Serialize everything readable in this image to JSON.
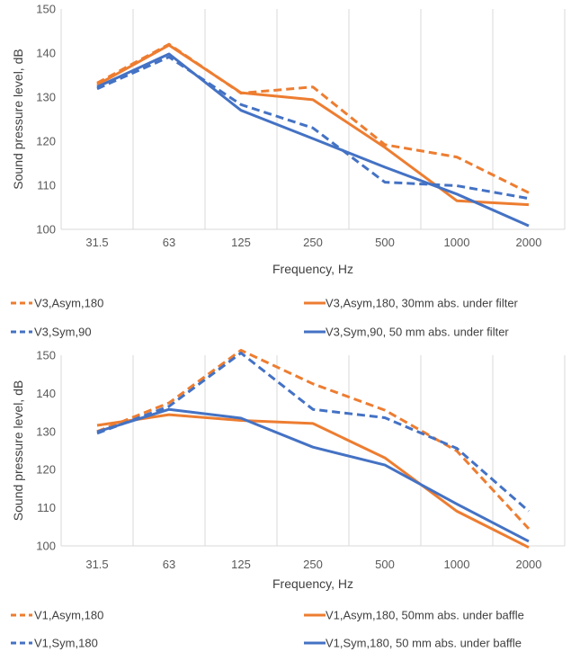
{
  "colors": {
    "orange": "#ED7D31",
    "blue": "#4472C4",
    "grid": "#D9D9D9",
    "text": "#595959"
  },
  "chart_data": [
    {
      "type": "line",
      "categories": [
        "31.5",
        "63",
        "125",
        "250",
        "500",
        "1000",
        "2000"
      ],
      "xlabel": "Frequency, Hz",
      "ylabel": "Sound pressure level, dB",
      "ylim": [
        100,
        150
      ],
      "yticks": [
        100,
        110,
        120,
        130,
        140,
        150
      ],
      "grid": "vertical",
      "legend_position": "bottom",
      "series": [
        {
          "name": "V3,Asym,180",
          "color": "#ED7D31",
          "dash": "dashed",
          "values": [
            133.2,
            142.0,
            130.9,
            132.3,
            119.2,
            116.4,
            108.3
          ]
        },
        {
          "name": "V3,Asym,180, 30mm abs. under filter",
          "color": "#ED7D31",
          "dash": "solid",
          "values": [
            132.8,
            141.8,
            131.0,
            129.4,
            118.6,
            106.5,
            105.6
          ]
        },
        {
          "name": "V3,Sym,90",
          "color": "#4472C4",
          "dash": "dashed",
          "values": [
            131.9,
            139.1,
            128.3,
            123.0,
            110.7,
            109.9,
            107.0
          ]
        },
        {
          "name": "V3,Sym,90, 50 mm abs. under filter",
          "color": "#4472C4",
          "dash": "solid",
          "values": [
            132.3,
            139.8,
            127.0,
            120.6,
            114.1,
            108.0,
            100.8
          ]
        }
      ]
    },
    {
      "type": "line",
      "categories": [
        "31.5",
        "63",
        "125",
        "250",
        "500",
        "1000",
        "2000"
      ],
      "xlabel": "Frequency, Hz",
      "ylabel": "Sound pressure level, dB",
      "ylim": [
        100,
        150
      ],
      "yticks": [
        100,
        110,
        120,
        130,
        140,
        150
      ],
      "grid": "vertical",
      "legend_position": "bottom",
      "series": [
        {
          "name": "V1,Asym,180",
          "color": "#ED7D31",
          "dash": "dashed",
          "values": [
            130.0,
            137.5,
            151.3,
            142.5,
            135.6,
            124.9,
            104.5
          ]
        },
        {
          "name": "V1,Asym,180, 50mm abs. under baffle",
          "color": "#ED7D31",
          "dash": "solid",
          "values": [
            131.6,
            134.4,
            132.9,
            132.1,
            123.1,
            109.1,
            99.6
          ]
        },
        {
          "name": "V1,Sym,180",
          "color": "#4472C4",
          "dash": "dashed",
          "values": [
            129.5,
            136.6,
            150.6,
            135.8,
            133.6,
            125.6,
            109.1
          ]
        },
        {
          "name": "V1,Sym,180, 50 mm abs. under baffle",
          "color": "#4472C4",
          "dash": "solid",
          "values": [
            129.9,
            135.8,
            133.5,
            125.9,
            121.2,
            111.0,
            101.2
          ]
        }
      ]
    }
  ]
}
